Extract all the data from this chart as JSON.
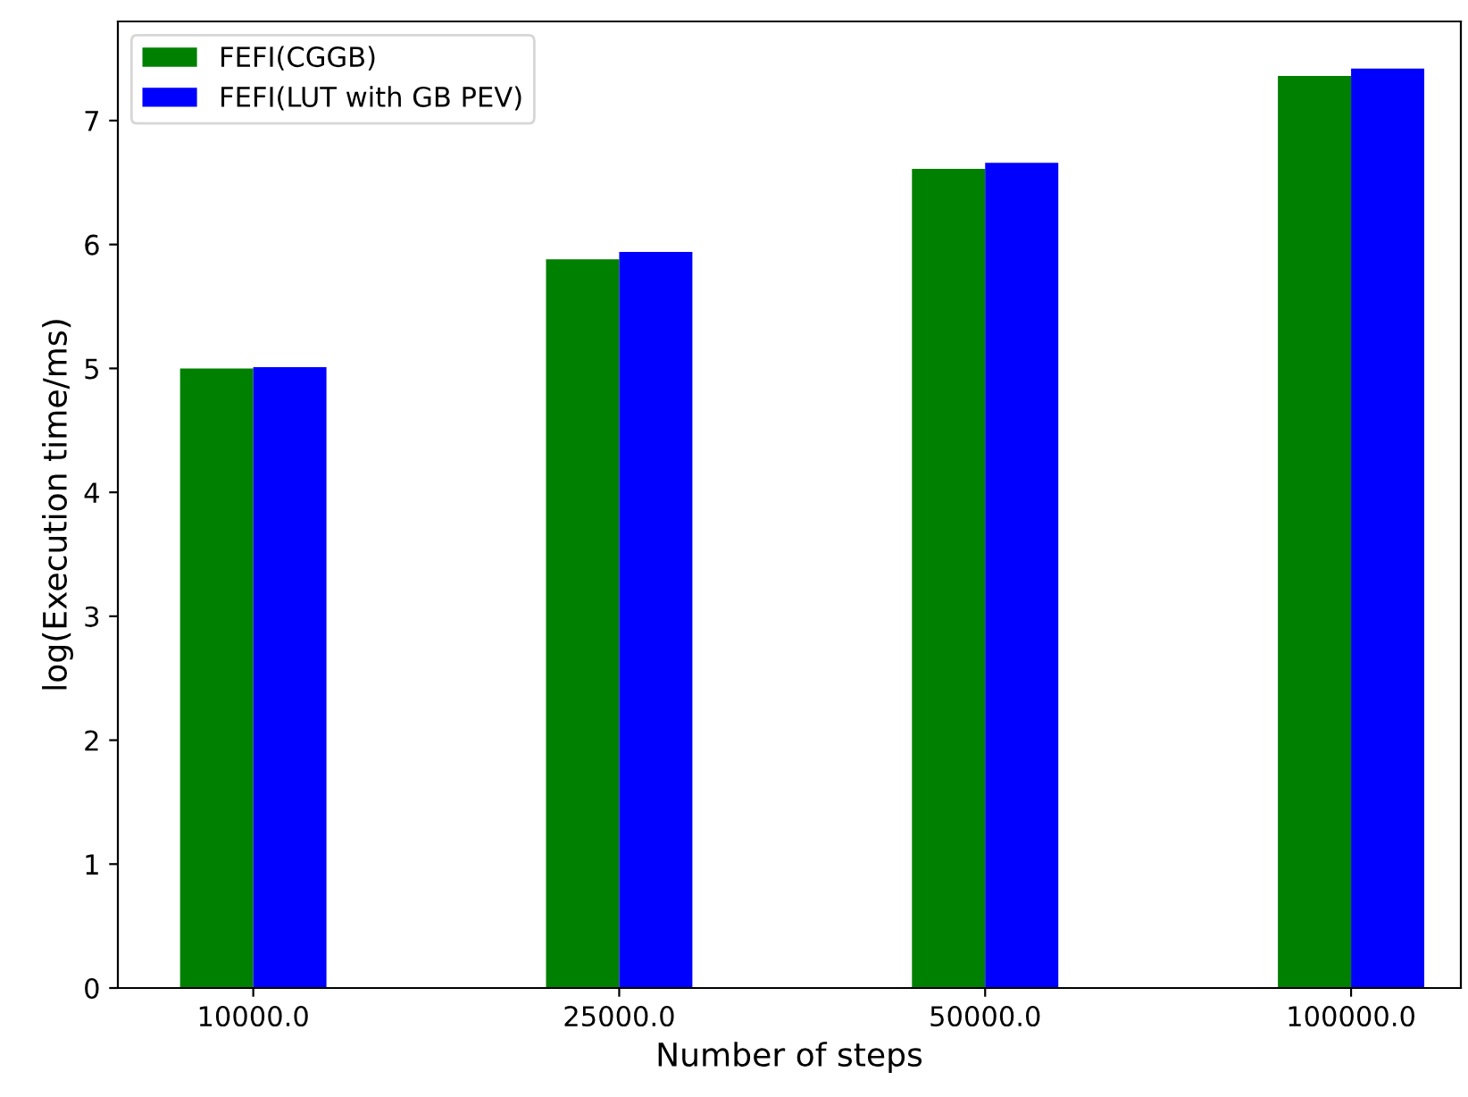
{
  "chart_data": {
    "type": "bar",
    "xlabel": "Number of steps",
    "ylabel": "log(Execution time/ms)",
    "categories": [
      "10000.0",
      "25000.0",
      "50000.0",
      "100000.0"
    ],
    "series": [
      {
        "name": "FEFI(CGGB)",
        "color": "#008000",
        "values": [
          5.0,
          5.88,
          6.61,
          7.36
        ]
      },
      {
        "name": "FEFI(LUT with GB PEV)",
        "color": "#0000ff",
        "values": [
          5.01,
          5.94,
          6.66,
          7.42
        ]
      }
    ],
    "ylim": [
      0,
      7.8
    ],
    "yticks": [
      0,
      1,
      2,
      3,
      4,
      5,
      6,
      7
    ],
    "grid": false,
    "legend": "top left"
  }
}
